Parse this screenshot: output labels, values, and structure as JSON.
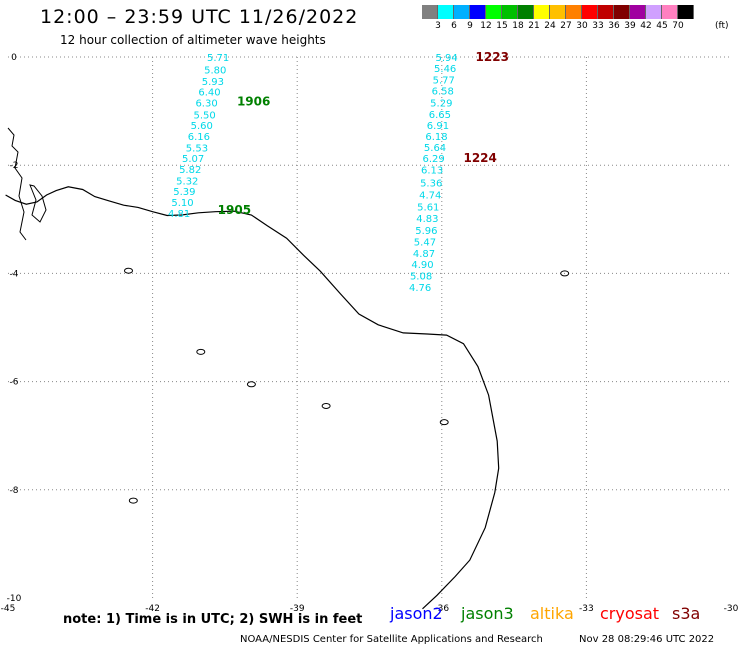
{
  "title": "12:00 – 23:59 UTC 11/26/2022",
  "subtitle": "12 hour collection of altimeter wave heights",
  "colorbar": {
    "colors": [
      "#808080",
      "#00ffff",
      "#00b0ff",
      "#0000ff",
      "#00ff00",
      "#00c000",
      "#008000",
      "#ffff00",
      "#ffc000",
      "#ff8000",
      "#ff0000",
      "#c00000",
      "#800000",
      "#a000a0",
      "#d0a0ff",
      "#ff80c0",
      "#000000"
    ],
    "labels": [
      "3",
      "6",
      "9",
      "12",
      "15",
      "18",
      "21",
      "24",
      "27",
      "30",
      "33",
      "36",
      "39",
      "42",
      "45",
      "70"
    ],
    "unit": "(ft)"
  },
  "axes": {
    "lon_labels": [
      "-45",
      "-42",
      "-39",
      "-36",
      "-33",
      "-30"
    ],
    "lon_values": [
      -45,
      -42,
      -39,
      -36,
      -33,
      -30
    ],
    "lat_labels": [
      "0",
      "-2",
      "-4",
      "-6",
      "-8",
      "-10"
    ],
    "lat_values": [
      0,
      -2,
      -4,
      -6,
      -8,
      -10
    ]
  },
  "tracks": [
    {
      "color": "#00d8e8",
      "points": [
        {
          "value": "5.71",
          "lat": 0.0,
          "lon": -40.64
        },
        {
          "value": "5.80",
          "lat": -0.23,
          "lon": -40.7
        },
        {
          "value": "5.93",
          "lat": -0.44,
          "lon": -40.75
        },
        {
          "value": "6.40",
          "lat": -0.64,
          "lon": -40.82
        },
        {
          "value": "6.30",
          "lat": -0.84,
          "lon": -40.88
        },
        {
          "value": "5.50",
          "lat": -1.06,
          "lon": -40.92
        },
        {
          "value": "5.60",
          "lat": -1.26,
          "lon": -40.98
        },
        {
          "value": "6.16",
          "lat": -1.46,
          "lon": -41.04
        },
        {
          "value": "5.53",
          "lat": -1.67,
          "lon": -41.08
        },
        {
          "value": "5.07",
          "lat": -1.87,
          "lon": -41.16
        },
        {
          "value": "5.82",
          "lat": -2.07,
          "lon": -41.22
        },
        {
          "value": "5.32",
          "lat": -2.28,
          "lon": -41.28
        },
        {
          "value": "5.39",
          "lat": -2.48,
          "lon": -41.34
        },
        {
          "value": "5.10",
          "lat": -2.68,
          "lon": -41.38
        },
        {
          "value": "4.81",
          "lat": -2.88,
          "lon": -41.45
        }
      ]
    },
    {
      "color": "#00d8e8",
      "points": [
        {
          "value": "5.94",
          "lat": 0.0,
          "lon": -35.9
        },
        {
          "value": "5.46",
          "lat": -0.2,
          "lon": -35.93
        },
        {
          "value": "5.77",
          "lat": -0.42,
          "lon": -35.96
        },
        {
          "value": "6.58",
          "lat": -0.62,
          "lon": -35.98
        },
        {
          "value": "5.29",
          "lat": -0.84,
          "lon": -36.01
        },
        {
          "value": "6.65",
          "lat": -1.05,
          "lon": -36.04
        },
        {
          "value": "6.91",
          "lat": -1.26,
          "lon": -36.08
        },
        {
          "value": "6.18",
          "lat": -1.46,
          "lon": -36.11
        },
        {
          "value": "5.64",
          "lat": -1.66,
          "lon": -36.14
        },
        {
          "value": "6.29",
          "lat": -1.87,
          "lon": -36.17
        },
        {
          "value": "6.13",
          "lat": -2.08,
          "lon": -36.2
        },
        {
          "value": "5.36",
          "lat": -2.32,
          "lon": -36.22
        },
        {
          "value": "4.74",
          "lat": -2.54,
          "lon": -36.24
        },
        {
          "value": "5.61",
          "lat": -2.76,
          "lon": -36.28
        },
        {
          "value": "4.83",
          "lat": -2.98,
          "lon": -36.3
        },
        {
          "value": "5.96",
          "lat": -3.2,
          "lon": -36.32
        },
        {
          "value": "5.47",
          "lat": -3.41,
          "lon": -36.35
        },
        {
          "value": "4.87",
          "lat": -3.62,
          "lon": -36.37
        },
        {
          "value": "4.90",
          "lat": -3.83,
          "lon": -36.4
        },
        {
          "value": "5.08",
          "lat": -4.04,
          "lon": -36.43
        },
        {
          "value": "4.76",
          "lat": -4.25,
          "lon": -36.45
        }
      ]
    }
  ],
  "time_labels": [
    {
      "text": "1906",
      "color": "#008000",
      "lat": -0.82,
      "lon": -40.25
    },
    {
      "text": "1905",
      "color": "#008000",
      "lat": -2.83,
      "lon": -40.65
    },
    {
      "text": "1223",
      "color": "#800000",
      "lat": 0.0,
      "lon": -35.3
    },
    {
      "text": "1224",
      "color": "#800000",
      "lat": -1.87,
      "lon": -35.55
    }
  ],
  "coastline": [
    [
      -2.55,
      -45.05
    ],
    [
      -2.65,
      -44.85
    ],
    [
      -2.72,
      -44.62
    ],
    [
      -2.68,
      -44.4
    ],
    [
      -2.55,
      -44.2
    ],
    [
      -2.47,
      -44.0
    ],
    [
      -2.4,
      -43.75
    ],
    [
      -2.45,
      -43.45
    ],
    [
      -2.58,
      -43.2
    ],
    [
      -2.66,
      -42.9
    ],
    [
      -2.74,
      -42.6
    ],
    [
      -2.78,
      -42.3
    ],
    [
      -2.86,
      -42.0
    ],
    [
      -2.93,
      -41.7
    ],
    [
      -2.92,
      -41.4
    ],
    [
      -2.88,
      -41.05
    ],
    [
      -2.86,
      -40.7
    ],
    [
      -2.85,
      -40.3
    ],
    [
      -2.92,
      -39.95
    ],
    [
      -3.12,
      -39.62
    ],
    [
      -3.35,
      -39.22
    ],
    [
      -3.68,
      -38.85
    ],
    [
      -3.96,
      -38.52
    ],
    [
      -4.38,
      -38.1
    ],
    [
      -4.75,
      -37.72
    ],
    [
      -4.95,
      -37.32
    ],
    [
      -5.1,
      -36.8
    ],
    [
      -5.12,
      -36.3
    ],
    [
      -5.14,
      -35.9
    ],
    [
      -5.3,
      -35.55
    ],
    [
      -5.72,
      -35.25
    ],
    [
      -6.25,
      -35.03
    ],
    [
      -7.1,
      -34.85
    ],
    [
      -7.6,
      -34.82
    ],
    [
      -8.05,
      -34.9
    ],
    [
      -8.7,
      -35.1
    ],
    [
      -9.3,
      -35.42
    ],
    [
      -9.6,
      -35.72
    ],
    [
      -9.95,
      -36.1
    ],
    [
      -10.2,
      -36.4
    ]
  ],
  "islands": [
    [
      -3.95,
      -42.5
    ],
    [
      -5.45,
      -41.0
    ],
    [
      -6.05,
      -39.95
    ],
    [
      -6.45,
      -38.4
    ],
    [
      -6.75,
      -35.95
    ],
    [
      -8.2,
      -42.4
    ],
    [
      -4.0,
      -33.45
    ]
  ],
  "note": "note: 1) Time is in UTC; 2) SWH is in feet",
  "legend": [
    {
      "label": "jason2",
      "color": "#0000ff"
    },
    {
      "label": "jason3",
      "color": "#008000"
    },
    {
      "label": "altika",
      "color": "#ffa500"
    },
    {
      "label": "cryosat",
      "color": "#ff0000"
    },
    {
      "label": "s3a",
      "color": "#800000"
    }
  ],
  "footer": "NOAA/NESDIS Center for Satellite Applications and Research",
  "timestamp": "Nov 28 08:29:46 UTC 2022"
}
